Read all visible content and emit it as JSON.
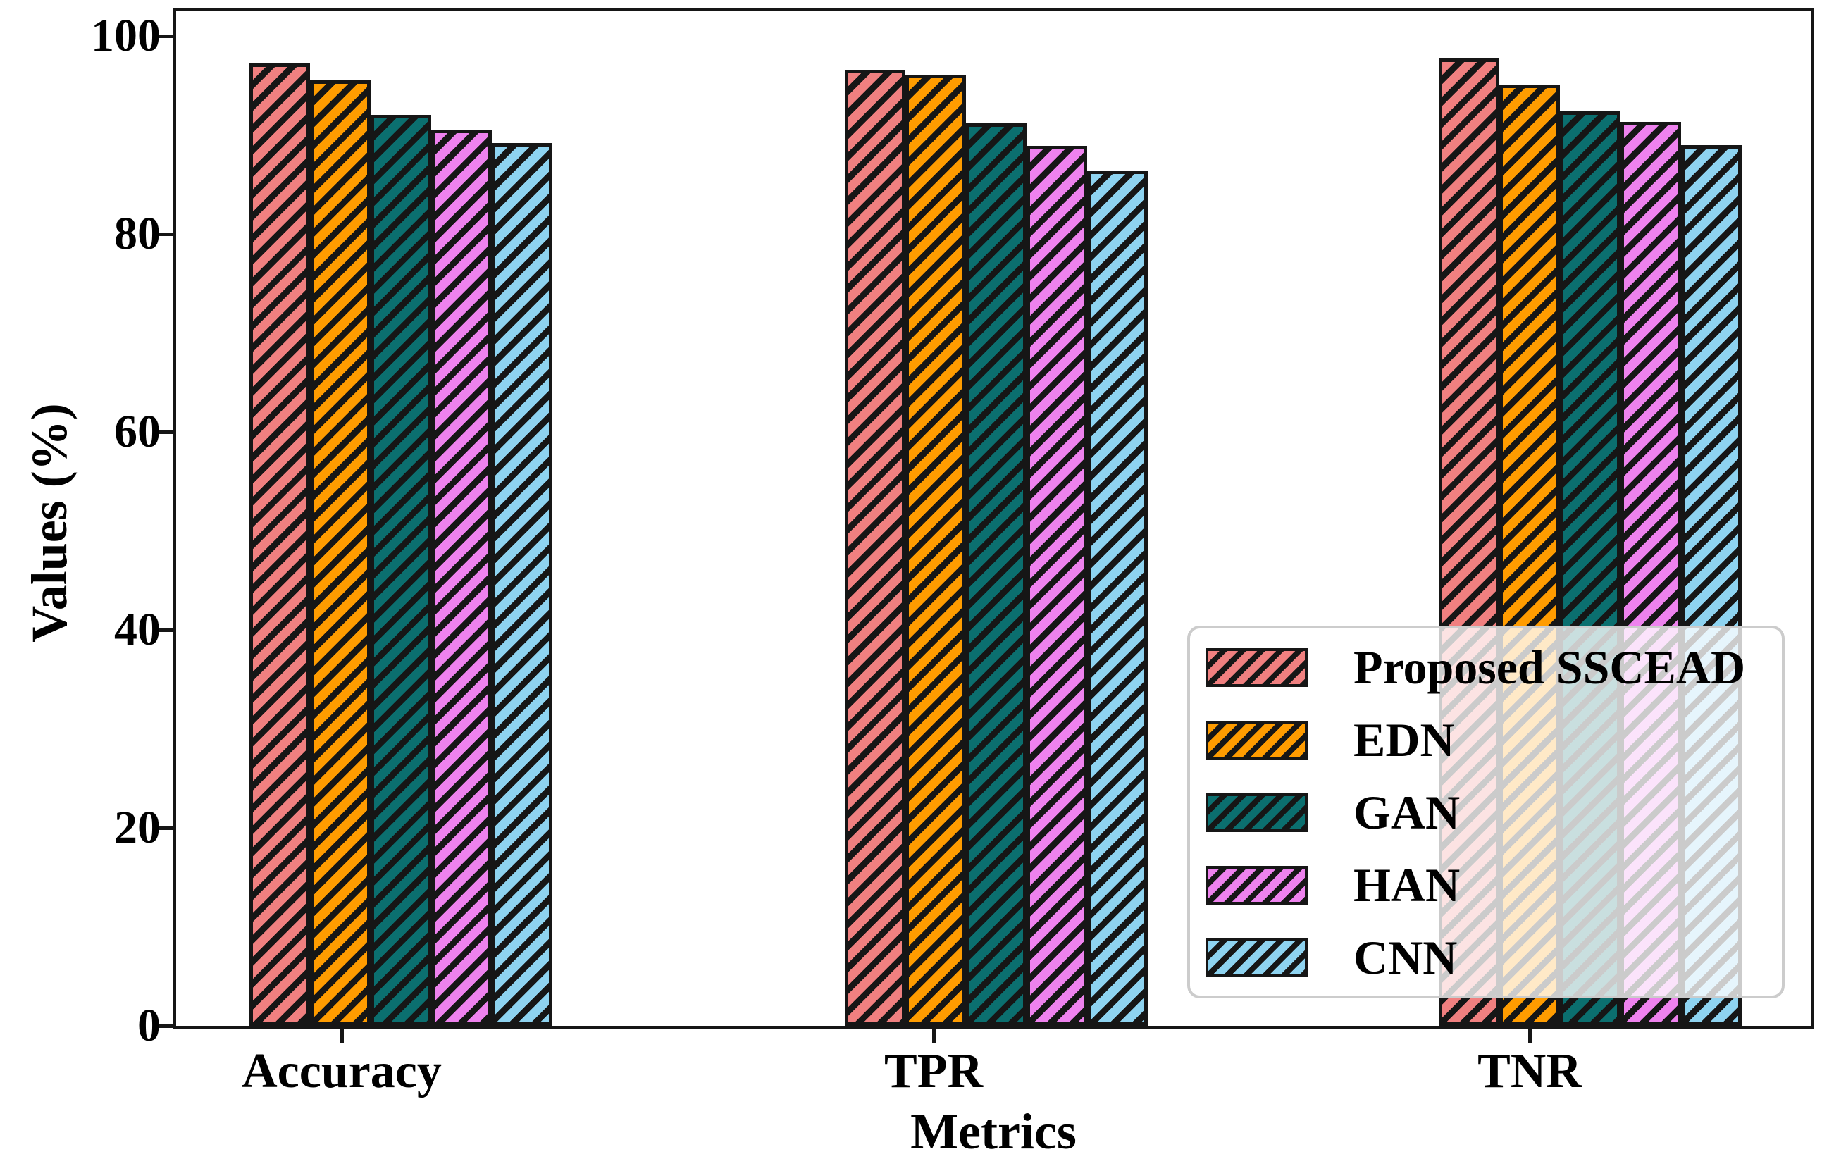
{
  "figure": {
    "background": "#ffffff",
    "axis_color": "#161616",
    "legend_border_color": "#cccccc",
    "hatch_color": "#161616"
  },
  "chart_data": {
    "type": "bar",
    "title": "",
    "xlabel": "Metrics",
    "ylabel": "Values (%)",
    "categories": [
      "Accuracy",
      "TPR",
      "TNR"
    ],
    "series": [
      {
        "name": "Proposed SSCEAD",
        "color": "#F08080",
        "values": [
          97.2,
          96.6,
          97.7
        ]
      },
      {
        "name": "EDN",
        "color": "#FF9C00",
        "values": [
          95.5,
          96.1,
          95.1
        ]
      },
      {
        "name": "GAN",
        "color": "#0B6F6F",
        "values": [
          92.0,
          91.2,
          92.4
        ]
      },
      {
        "name": "HAN",
        "color": "#EE82EE",
        "values": [
          90.5,
          88.9,
          91.3
        ]
      },
      {
        "name": "CNN",
        "color": "#8ED3F0",
        "values": [
          89.2,
          86.4,
          89.0
        ]
      }
    ],
    "ylim": [
      0,
      100
    ],
    "yticks": [
      0,
      20,
      40,
      60,
      80,
      100
    ],
    "grid": false,
    "hatch_pattern": "diagonal-forward",
    "bar_style": "hatched, black edges",
    "legend": {
      "position": "lower-right-inside",
      "entries": [
        "Proposed SSCEAD",
        "EDN",
        "GAN",
        "HAN",
        "CNN"
      ]
    }
  }
}
